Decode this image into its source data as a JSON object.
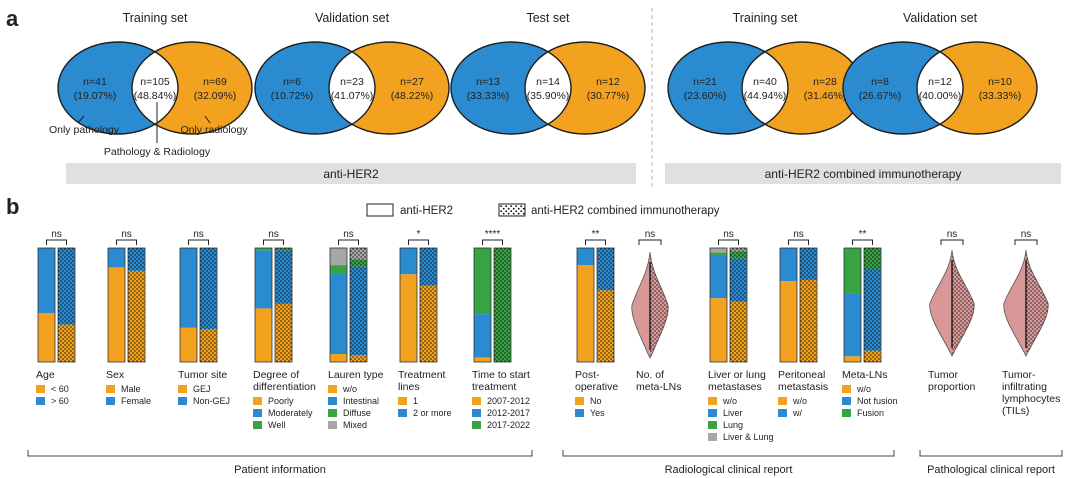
{
  "panel_a_label": "a",
  "panel_b_label": "b",
  "colors": {
    "blue": "#2a8bd1",
    "orange": "#f2a21e",
    "green": "#37a344",
    "gray": "#a7a7a7",
    "violin": "#d99898",
    "banner": "#e0e0e0"
  },
  "chart_data": [
    {
      "type": "venn",
      "title": "anti-HER2 Venn diagrams",
      "group": "anti-HER2",
      "legend_notes": {
        "left": "Only pathology",
        "middle": "Pathology & Radiology",
        "right": "Only radiology"
      },
      "sets": [
        {
          "title": "Training set",
          "left": "n=41",
          "left_pct": "(19.07%)",
          "mid": "n=105",
          "mid_pct": "(48.84%)",
          "right": "n=69",
          "right_pct": "(32.09%)"
        },
        {
          "title": "Validation set",
          "left": "n=6",
          "left_pct": "(10.72%)",
          "mid": "n=23",
          "mid_pct": "(41.07%)",
          "right": "n=27",
          "right_pct": "(48.22%)"
        },
        {
          "title": "Test set",
          "left": "n=13",
          "left_pct": "(33.33%)",
          "mid": "n=14",
          "mid_pct": "(35.90%)",
          "right": "n=12",
          "right_pct": "(30.77%)"
        }
      ]
    },
    {
      "type": "venn",
      "title": "anti-HER2 combined immunotherapy Venn diagrams",
      "group": "anti-HER2 combined immunotherapy",
      "sets": [
        {
          "title": "Training set",
          "left": "n=21",
          "left_pct": "(23.60%)",
          "mid": "n=40",
          "mid_pct": "(44.94%)",
          "right": "n=28",
          "right_pct": "(31.46%)"
        },
        {
          "title": "Validation set",
          "left": "n=8",
          "left_pct": "(26.67%)",
          "mid": "n=12",
          "mid_pct": "(40.00%)",
          "right": "n=10",
          "right_pct": "(33.33%)"
        }
      ]
    },
    {
      "type": "bar",
      "stacked": true,
      "title": "Clinical characteristics (stacked proportion bars)",
      "legend": {
        "plain": "anti-HER2",
        "dotted": "anti-HER2 combined immunotherapy"
      },
      "sections": [
        "Patient information",
        "Radiological clinical report",
        "Pathological clinical report"
      ],
      "variables": [
        {
          "name": [
            "Age"
          ],
          "sig": "ns",
          "categories": [
            {
              "label": "< 60",
              "color": "orange"
            },
            {
              "label": "> 60",
              "color": "blue"
            }
          ],
          "values": {
            "anti-HER2": [
              0.43,
              0.57
            ],
            "combined": [
              0.33,
              0.67
            ]
          }
        },
        {
          "name": [
            "Sex"
          ],
          "sig": "ns",
          "categories": [
            {
              "label": "Male",
              "color": "orange"
            },
            {
              "label": "Female",
              "color": "blue"
            }
          ],
          "values": {
            "anti-HER2": [
              0.83,
              0.17
            ],
            "combined": [
              0.8,
              0.2
            ]
          }
        },
        {
          "name": [
            "Tumor site"
          ],
          "sig": "ns",
          "categories": [
            {
              "label": "GEJ",
              "color": "orange"
            },
            {
              "label": "Non-GEJ",
              "color": "blue"
            }
          ],
          "values": {
            "anti-HER2": [
              0.3,
              0.7
            ],
            "combined": [
              0.29,
              0.71
            ]
          }
        },
        {
          "name": [
            "Degree of",
            "differentiation"
          ],
          "sig": "ns",
          "categories": [
            {
              "label": "Poorly",
              "color": "orange"
            },
            {
              "label": "Moderately",
              "color": "blue"
            },
            {
              "label": "Well",
              "color": "green"
            }
          ],
          "values": {
            "anti-HER2": [
              0.47,
              0.51,
              0.02
            ],
            "combined": [
              0.51,
              0.47,
              0.02
            ]
          }
        },
        {
          "name": [
            "Lauren type"
          ],
          "sig": "ns",
          "categories": [
            {
              "label": "w/o",
              "color": "orange"
            },
            {
              "label": "Intestinal",
              "color": "blue"
            },
            {
              "label": "Diffuse",
              "color": "green"
            },
            {
              "label": "Mixed",
              "color": "gray"
            }
          ],
          "values": {
            "anti-HER2": [
              0.07,
              0.71,
              0.07,
              0.15
            ],
            "combined": [
              0.06,
              0.78,
              0.06,
              0.1
            ]
          }
        },
        {
          "name": [
            "Treatment",
            "lines"
          ],
          "sig": "*",
          "categories": [
            {
              "label": "1",
              "color": "orange"
            },
            {
              "label": "2 or more",
              "color": "blue"
            }
          ],
          "values": {
            "anti-HER2": [
              0.77,
              0.23
            ],
            "combined": [
              0.67,
              0.33
            ]
          }
        },
        {
          "name": [
            "Time to start",
            "treatment"
          ],
          "sig": "****",
          "categories": [
            {
              "label": "2007-2012",
              "color": "orange"
            },
            {
              "label": "2012-2017",
              "color": "blue"
            },
            {
              "label": "2017-2022",
              "color": "green"
            }
          ],
          "values": {
            "anti-HER2": [
              0.04,
              0.38,
              0.58
            ],
            "combined": [
              0.0,
              0.0,
              1.0
            ]
          }
        },
        {
          "name": [
            "Post-",
            "operative"
          ],
          "sig": "**",
          "categories": [
            {
              "label": "No",
              "color": "orange"
            },
            {
              "label": "Yes",
              "color": "blue"
            }
          ],
          "values": {
            "anti-HER2": [
              0.85,
              0.15
            ],
            "combined": [
              0.63,
              0.37
            ]
          }
        },
        {
          "name": [
            "Liver or lung",
            "metastases"
          ],
          "sig": "ns",
          "categories": [
            {
              "label": "w/o",
              "color": "orange"
            },
            {
              "label": "Liver",
              "color": "blue"
            },
            {
              "label": "Lung",
              "color": "green"
            },
            {
              "label": "Liver & Lung",
              "color": "gray"
            }
          ],
          "values": {
            "anti-HER2": [
              0.56,
              0.37,
              0.03,
              0.04
            ],
            "combined": [
              0.53,
              0.38,
              0.06,
              0.03
            ]
          }
        },
        {
          "name": [
            "Peritoneal",
            "metastasis"
          ],
          "sig": "ns",
          "categories": [
            {
              "label": "w/o",
              "color": "orange"
            },
            {
              "label": "w/",
              "color": "blue"
            }
          ],
          "values": {
            "anti-HER2": [
              0.71,
              0.29
            ],
            "combined": [
              0.72,
              0.28
            ]
          }
        },
        {
          "name": [
            "Meta-LNs"
          ],
          "sig": "**",
          "categories": [
            {
              "label": "w/o",
              "color": "orange"
            },
            {
              "label": "Not fusion",
              "color": "blue"
            },
            {
              "label": "Fusion",
              "color": "green"
            }
          ],
          "values": {
            "anti-HER2": [
              0.05,
              0.55,
              0.4
            ],
            "combined": [
              0.1,
              0.72,
              0.18
            ]
          }
        }
      ],
      "violins": [
        {
          "name": [
            "No. of",
            "meta-LNs"
          ],
          "sig": "ns"
        },
        {
          "name": [
            "Tumor",
            "proportion"
          ],
          "sig": "ns"
        },
        {
          "name": [
            "Tumor-",
            "infiltrating",
            "lymphocytes",
            "(TILs)"
          ],
          "sig": "ns"
        }
      ]
    }
  ]
}
